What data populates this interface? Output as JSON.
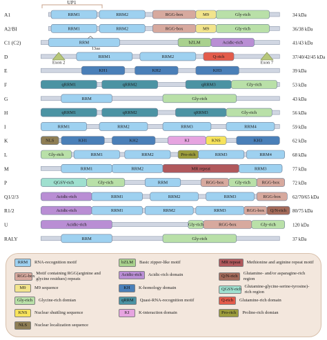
{
  "colors": {
    "RRM": "#9ed1f0",
    "RGG": "#d7a99e",
    "M9": "#f2e48c",
    "Gly": "#b9e0a8",
    "KNS": "#f7e35c",
    "Pro": "#9c9c3c",
    "bZLM": "#a9d18e",
    "Acidic": "#b98ed4",
    "KH": "#4a7fb8",
    "qRRM": "#4b93a3",
    "KI": "#e6a4e0",
    "NLS": "#8f7e55",
    "MR": "#b0585c",
    "QN": "#a36a5a",
    "QGSY": "#9fe0cf",
    "Qrich": "#e35b4a",
    "Exon": "#b7c77a"
  },
  "annotations": {
    "up1": "UP1",
    "insert_13aa": "13aa",
    "exon2": "Exon 2",
    "exon7": "Exon 7"
  },
  "proteins": [
    {
      "name": "A1",
      "kda": "34 kDa",
      "domains": [
        {
          "type": "RRM",
          "label": "RRM1",
          "s": 0.06,
          "e": 0.24
        },
        {
          "type": "RRM",
          "label": "RRM2",
          "s": 0.25,
          "e": 0.43
        },
        {
          "type": "RGG",
          "label": "RGG-box",
          "s": 0.46,
          "e": 0.63
        },
        {
          "type": "M9",
          "label": "M9",
          "s": 0.63,
          "e": 0.71
        },
        {
          "type": "Gly",
          "label": "Gly-rich",
          "s": 0.71,
          "e": 0.92
        }
      ],
      "bar": [
        0.05,
        0.96
      ]
    },
    {
      "name": "A2/BI",
      "kda": "36/38 kDa",
      "domains": [
        {
          "type": "RRM",
          "label": "RRM1",
          "s": 0.06,
          "e": 0.24
        },
        {
          "type": "RRM",
          "label": "RRM2",
          "s": 0.25,
          "e": 0.43
        },
        {
          "type": "RGG",
          "label": "RGG-box",
          "s": 0.46,
          "e": 0.63
        },
        {
          "type": "M9",
          "label": "M9",
          "s": 0.63,
          "e": 0.71
        },
        {
          "type": "Gly",
          "label": "Gly-rich",
          "s": 0.71,
          "e": 0.92
        }
      ],
      "bar": [
        0.05,
        0.96
      ]
    },
    {
      "name": "C1 (C2)",
      "kda": "41/43 kDa",
      "domains": [
        {
          "type": "RRM",
          "label": "RRM",
          "s": 0.05,
          "e": 0.33
        },
        {
          "type": "bZLM",
          "label": "bZLM",
          "s": 0.56,
          "e": 0.69
        },
        {
          "type": "Acidic",
          "label": "Acidic-rich",
          "s": 0.69,
          "e": 0.86
        }
      ],
      "bar": [
        0.02,
        0.96
      ]
    },
    {
      "name": "D",
      "kda": "37/40/42/45 kDa",
      "domains": [
        {
          "type": "RRM",
          "label": "RRM1",
          "s": 0.16,
          "e": 0.38
        },
        {
          "type": "RRM",
          "label": "RRM2",
          "s": 0.41,
          "e": 0.63
        },
        {
          "type": "Qrich",
          "label": "Q-rich",
          "s": 0.66,
          "e": 0.78
        }
      ],
      "bar": [
        0.02,
        0.96
      ]
    },
    {
      "name": "E",
      "kda": "39 kDa",
      "domains": [
        {
          "type": "KH",
          "label": "KH1",
          "s": 0.18,
          "e": 0.35
        },
        {
          "type": "KH",
          "label": "KH2",
          "s": 0.39,
          "e": 0.56
        },
        {
          "type": "KH",
          "label": "KH3",
          "s": 0.63,
          "e": 0.8
        }
      ],
      "bar": [
        0.02,
        0.96
      ]
    },
    {
      "name": "F",
      "kda": "53 kDa",
      "domains": [
        {
          "type": "qRRM",
          "label": "qRRM1",
          "s": 0.02,
          "e": 0.24
        },
        {
          "type": "qRRM",
          "label": "qRRM2",
          "s": 0.26,
          "e": 0.48
        },
        {
          "type": "qRRM",
          "label": "qRRM3",
          "s": 0.59,
          "e": 0.77
        },
        {
          "type": "Gly",
          "label": "Gly-rich",
          "s": 0.77,
          "e": 0.95
        }
      ],
      "bar": [
        0.02,
        0.96
      ]
    },
    {
      "name": "G",
      "kda": "43 kDa",
      "domains": [
        {
          "type": "RRM",
          "label": "RRM",
          "s": 0.1,
          "e": 0.3
        },
        {
          "type": "Gly",
          "label": "Gly-rich",
          "s": 0.5,
          "e": 0.79
        }
      ],
      "bar": [
        0.02,
        0.96
      ]
    },
    {
      "name": "H",
      "kda": "56 kDa",
      "domains": [
        {
          "type": "qRRM",
          "label": "qRRM1",
          "s": 0.02,
          "e": 0.24
        },
        {
          "type": "qRRM",
          "label": "qRRM2",
          "s": 0.26,
          "e": 0.48
        },
        {
          "type": "qRRM",
          "label": "qRRM3",
          "s": 0.55,
          "e": 0.75
        },
        {
          "type": "Gly",
          "label": "Gly-rich",
          "s": 0.75,
          "e": 0.93
        }
      ],
      "bar": [
        0.02,
        0.96
      ]
    },
    {
      "name": "I",
      "kda": "59 kDa",
      "domains": [
        {
          "type": "RRM",
          "label": "RRM1",
          "s": 0.02,
          "e": 0.2
        },
        {
          "type": "RRM",
          "label": "RRM2",
          "s": 0.25,
          "e": 0.44
        },
        {
          "type": "RRM",
          "label": "RRM3",
          "s": 0.5,
          "e": 0.69
        },
        {
          "type": "RRM",
          "label": "RRM4",
          "s": 0.75,
          "e": 0.94
        }
      ],
      "bar": [
        0.02,
        0.96
      ]
    },
    {
      "name": "K",
      "kda": "62 kDa",
      "domains": [
        {
          "type": "NLS",
          "label": "NLS",
          "s": 0.02,
          "e": 0.09
        },
        {
          "type": "KH",
          "label": "KH1",
          "s": 0.1,
          "e": 0.27
        },
        {
          "type": "KH",
          "label": "KH2",
          "s": 0.3,
          "e": 0.47
        },
        {
          "type": "KI",
          "label": "KI",
          "s": 0.52,
          "e": 0.67
        },
        {
          "type": "KNS",
          "label": "KNS",
          "s": 0.67,
          "e": 0.75
        },
        {
          "type": "KH",
          "label": "KH3",
          "s": 0.79,
          "e": 0.96
        }
      ],
      "bar": [
        0.02,
        0.96
      ]
    },
    {
      "name": "L",
      "kda": "68 kDa",
      "domains": [
        {
          "type": "Gly",
          "label": "Gly-rich",
          "s": 0.02,
          "e": 0.14
        },
        {
          "type": "RRM",
          "label": "RRM1",
          "s": 0.15,
          "e": 0.33
        },
        {
          "type": "RRM",
          "label": "RRM2",
          "s": 0.35,
          "e": 0.53
        },
        {
          "type": "Pro",
          "label": "Pro-rich",
          "s": 0.56,
          "e": 0.64
        },
        {
          "type": "RRM",
          "label": "RRM3",
          "s": 0.64,
          "e": 0.82
        },
        {
          "type": "RRM",
          "label": "RRM4",
          "s": 0.83,
          "e": 0.98
        }
      ],
      "bar": [
        0.02,
        0.98
      ]
    },
    {
      "name": "M",
      "kda": "77 kDa",
      "domains": [
        {
          "type": "RRM",
          "label": "RRM1",
          "s": 0.1,
          "e": 0.3
        },
        {
          "type": "RRM",
          "label": "RRM2",
          "s": 0.3,
          "e": 0.5
        },
        {
          "type": "MR",
          "label": "MR repeat",
          "s": 0.5,
          "e": 0.8
        },
        {
          "type": "RRM",
          "label": "RRM3",
          "s": 0.8,
          "e": 0.97
        }
      ],
      "bar": [
        0.02,
        0.97
      ]
    },
    {
      "name": "P",
      "kda": "72 kDa",
      "domains": [
        {
          "type": "QGSY",
          "label": "QGSY-rich",
          "s": 0.02,
          "e": 0.2
        },
        {
          "type": "Gly",
          "label": "Gly-rich",
          "s": 0.2,
          "e": 0.35
        },
        {
          "type": "RRM",
          "label": "RRM",
          "s": 0.43,
          "e": 0.57
        },
        {
          "type": "RGG",
          "label": "RGG-box",
          "s": 0.65,
          "e": 0.76
        },
        {
          "type": "Gly",
          "label": "Gly-rich",
          "s": 0.76,
          "e": 0.87
        },
        {
          "type": "RGG",
          "label": "RGG-box",
          "s": 0.87,
          "e": 0.98
        }
      ],
      "bar": [
        0.02,
        0.98
      ]
    },
    {
      "name": "Q1/2/3",
      "kda": "62/70/65 kDa",
      "domains": [
        {
          "type": "Acidic",
          "label": "Acidic-rich",
          "s": 0.02,
          "e": 0.22
        },
        {
          "type": "RRM",
          "label": "RRM1",
          "s": 0.22,
          "e": 0.42
        },
        {
          "type": "RRM",
          "label": "RRM2",
          "s": 0.45,
          "e": 0.64
        },
        {
          "type": "RRM",
          "label": "RRM3",
          "s": 0.67,
          "e": 0.86
        },
        {
          "type": "RGG",
          "label": "RGG-box",
          "s": 0.87,
          "e": 0.99
        }
      ],
      "bar": [
        0.02,
        0.99
      ]
    },
    {
      "name": "R1/2",
      "kda": "80/75 kDa",
      "domains": [
        {
          "type": "Acidic",
          "label": "Acidic-rich",
          "s": 0.02,
          "e": 0.22
        },
        {
          "type": "RRM",
          "label": "RRM1",
          "s": 0.22,
          "e": 0.42
        },
        {
          "type": "RRM",
          "label": "RRM2",
          "s": 0.43,
          "e": 0.62
        },
        {
          "type": "RRM",
          "label": "RRM3",
          "s": 0.63,
          "e": 0.82
        },
        {
          "type": "RGG",
          "label": "RGG-box",
          "s": 0.82,
          "e": 0.91
        },
        {
          "type": "QN",
          "label": "Q/N-rich",
          "s": 0.91,
          "e": 1.0
        }
      ],
      "bar": [
        0.02,
        1.0
      ]
    },
    {
      "name": "U",
      "kda": "120 kDa",
      "domains": [
        {
          "type": "Acidic",
          "label": "Acidic-rich",
          "s": 0.02,
          "e": 0.3
        },
        {
          "type": "Gly",
          "label": "Gly-rich",
          "s": 0.6,
          "e": 0.66
        },
        {
          "type": "RGG",
          "label": "RGG-box",
          "s": 0.66,
          "e": 0.85
        },
        {
          "type": "Gly",
          "label": "Gly-rich",
          "s": 0.85,
          "e": 0.98
        }
      ],
      "bar": [
        0.02,
        0.98
      ]
    },
    {
      "name": "RALY",
      "kda": "37 kDa",
      "domains": [
        {
          "type": "RRM",
          "label": "RRM",
          "s": 0.1,
          "e": 0.3
        },
        {
          "type": "Gly",
          "label": "Gly-rich",
          "s": 0.5,
          "e": 0.79
        }
      ],
      "bar": [
        0.02,
        0.96
      ]
    }
  ],
  "legend": [
    {
      "key": "RRM",
      "label": "RRM",
      "desc": "RNA-recognition motif"
    },
    {
      "key": "bZLM",
      "label": "bZLM",
      "desc": "Basic zipper-like motif"
    },
    {
      "key": "MR",
      "label": "MR repeat",
      "desc": "Methionine and arginine repeat motif"
    },
    {
      "key": "RGG",
      "label": "RGG-box",
      "desc": "Motif containing RGG(arginine and glycine residues) repeats"
    },
    {
      "key": "Acidic",
      "label": "Acidic-rich",
      "desc": "Acidic-rich domain"
    },
    {
      "key": "QN",
      "label": "Q/N-rich",
      "desc": "Glutamine- and/or asparagine-rich region"
    },
    {
      "key": "M9",
      "label": "M9",
      "desc": "M9 sequence"
    },
    {
      "key": "KH",
      "label": "KH",
      "desc": "K-homology domain"
    },
    {
      "key": "QGSY",
      "label": "QGSY-rich",
      "desc": "Glutamine-glycine-serine-tyrosine)-rich region"
    },
    {
      "key": "Gly",
      "label": "Gly-rich",
      "desc": "Glycine-rich domian"
    },
    {
      "key": "qRRM",
      "label": "qRRM",
      "desc": "Quasi-RNA-recognition motif"
    },
    {
      "key": "Qrich",
      "label": "Q-rich",
      "desc": "Glutamine-rich domain"
    },
    {
      "key": "KNS",
      "label": "KNS",
      "desc": "Nuclear shuttling sequence"
    },
    {
      "key": "KI",
      "label": "KI",
      "desc": "K-interaction domain"
    },
    {
      "key": "Pro",
      "label": "Pro-rich",
      "desc": "Proline-rich domian"
    },
    {
      "key": "NLS",
      "label": "NLS",
      "desc": "Nuclear localization sequence"
    }
  ]
}
